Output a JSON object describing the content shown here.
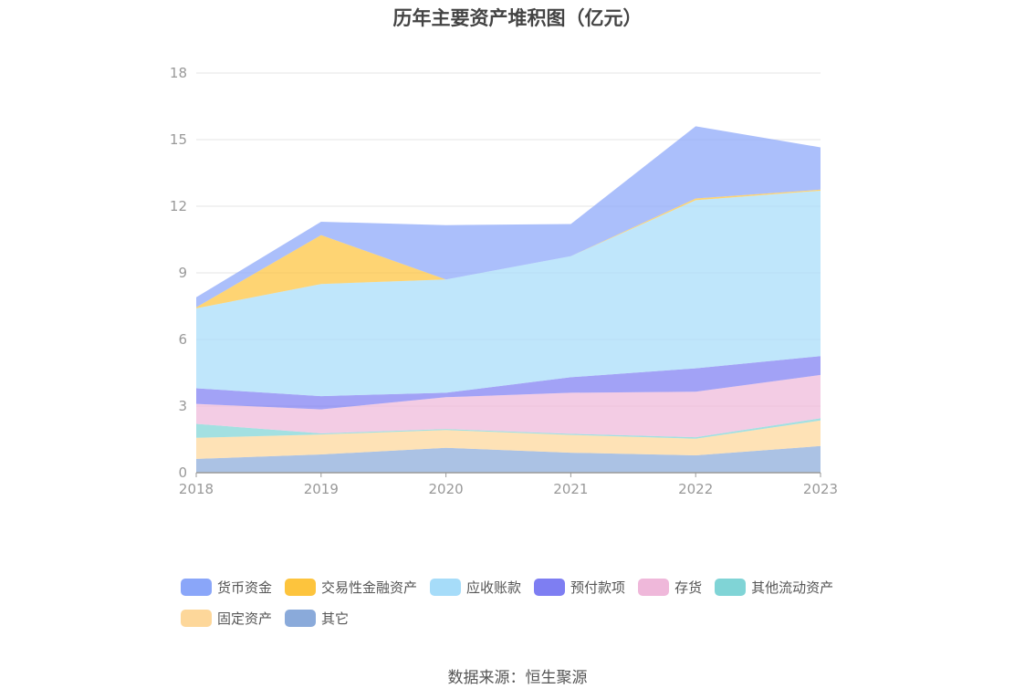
{
  "title": "历年主要资产堆积图（亿元）",
  "source": "数据来源：恒生聚源",
  "colors": {
    "货币资金": "#8aa6f9",
    "交易性金融资产": "#fdc43d",
    "应收账款": "#a6dcf9",
    "预付款项": "#7e7ef2",
    "存货": "#efb8da",
    "其他流动资产": "#80d4d6",
    "固定资产": "#fdd79a",
    "其它": "#8aaada"
  },
  "chart_data": {
    "type": "area",
    "stacked": true,
    "title": "历年主要资产堆积图（亿元）",
    "x": [
      "2018",
      "2019",
      "2020",
      "2021",
      "2022",
      "2023"
    ],
    "ylim": [
      0,
      18
    ],
    "yticks": [
      "0",
      "3",
      "6",
      "9",
      "12",
      "15",
      "18"
    ],
    "grid": true,
    "legend": "bottom",
    "series": [
      {
        "name": "其它",
        "values": [
          0.62,
          0.82,
          1.12,
          0.9,
          0.78,
          1.2
        ]
      },
      {
        "name": "固定资产",
        "values": [
          0.95,
          0.9,
          0.8,
          0.8,
          0.75,
          1.15
        ]
      },
      {
        "name": "其他流动资产",
        "values": [
          0.63,
          0.05,
          0.05,
          0.05,
          0.07,
          0.1
        ]
      },
      {
        "name": "存货",
        "values": [
          0.9,
          1.08,
          1.43,
          1.85,
          2.05,
          1.95
        ]
      },
      {
        "name": "预付款项",
        "values": [
          0.7,
          0.6,
          0.2,
          0.7,
          1.05,
          0.85
        ]
      },
      {
        "name": "应收账款",
        "values": [
          3.6,
          5.05,
          5.1,
          5.45,
          7.57,
          7.45
        ]
      },
      {
        "name": "交易性金融资产",
        "values": [
          0.05,
          2.2,
          0.0,
          0.0,
          0.08,
          0.05
        ]
      },
      {
        "name": "货币资金",
        "values": [
          0.45,
          0.6,
          2.45,
          1.45,
          3.25,
          1.9
        ]
      }
    ]
  },
  "legend_order": [
    "货币资金",
    "交易性金融资产",
    "应收账款",
    "预付款项",
    "存货",
    "其他流动资产",
    "固定资产",
    "其它"
  ]
}
